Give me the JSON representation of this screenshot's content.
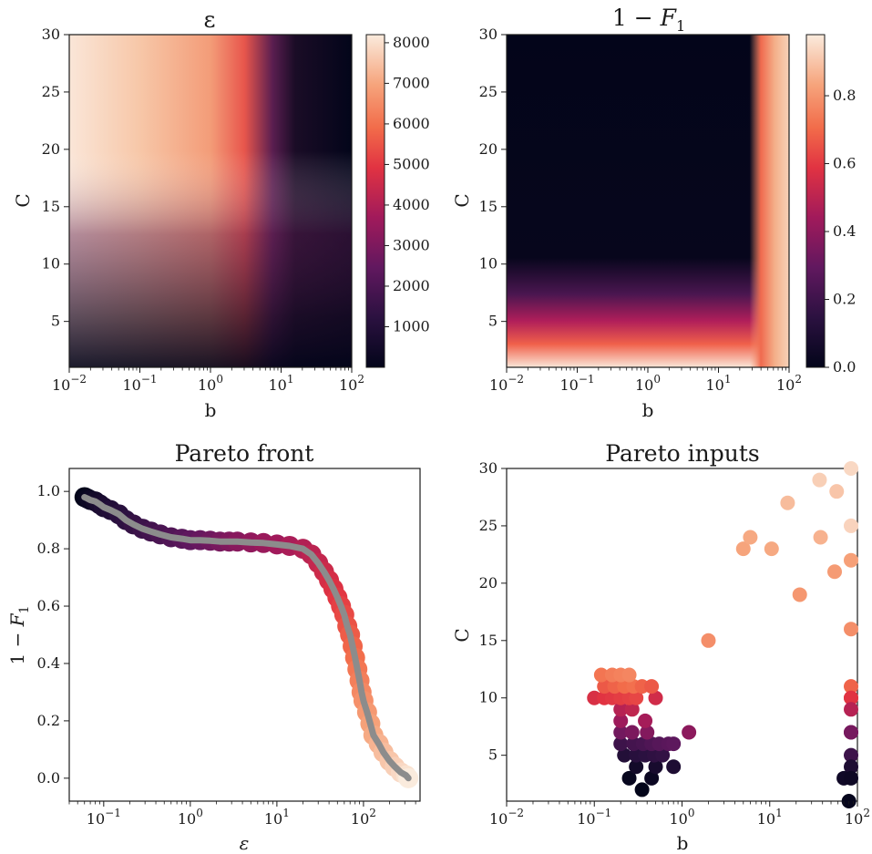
{
  "chart_data": [
    {
      "type": "heatmap",
      "title": "ε",
      "xlabel": "b",
      "ylabel": "C",
      "x_scale": "log",
      "xlim": [
        0.01,
        100
      ],
      "ylim": [
        1,
        30
      ],
      "xticks": [
        {
          "v": 0.01,
          "base": "10",
          "exp": "−2"
        },
        {
          "v": 0.1,
          "base": "10",
          "exp": "−1"
        },
        {
          "v": 1,
          "base": "10",
          "exp": "0"
        },
        {
          "v": 10,
          "base": "10",
          "exp": "1"
        },
        {
          "v": 100,
          "base": "10",
          "exp": "2"
        }
      ],
      "yticks": [
        "5",
        "10",
        "15",
        "20",
        "25",
        "30"
      ],
      "colorbar": {
        "min": 0,
        "max": 8200,
        "ticks": [
          "1000",
          "2000",
          "3000",
          "4000",
          "5000",
          "6000",
          "7000",
          "8000"
        ]
      },
      "colormap": "rocket"
    },
    {
      "type": "heatmap",
      "title": "1 − F₁",
      "xlabel": "b",
      "ylabel": "C",
      "x_scale": "log",
      "xlim": [
        0.01,
        100
      ],
      "ylim": [
        1,
        30
      ],
      "xticks": [
        {
          "v": 0.01,
          "base": "10",
          "exp": "−2"
        },
        {
          "v": 0.1,
          "base": "10",
          "exp": "−1"
        },
        {
          "v": 1,
          "base": "10",
          "exp": "0"
        },
        {
          "v": 10,
          "base": "10",
          "exp": "1"
        },
        {
          "v": 100,
          "base": "10",
          "exp": "2"
        }
      ],
      "yticks": [
        "5",
        "10",
        "15",
        "20",
        "25",
        "30"
      ],
      "colorbar": {
        "min": 0,
        "max": 0.98,
        "ticks": [
          "0.0",
          "0.2",
          "0.4",
          "0.6",
          "0.8"
        ]
      },
      "colormap": "rocket"
    },
    {
      "type": "scatter",
      "title": "Pareto front",
      "xlabel": "ε",
      "ylabel": "1 − F₁",
      "x_scale": "log",
      "xlim": [
        0.04,
        450
      ],
      "ylim": [
        -0.08,
        1.08
      ],
      "xticks": [
        {
          "v": 0.1,
          "base": "10",
          "exp": "−1"
        },
        {
          "v": 1,
          "base": "10",
          "exp": "0"
        },
        {
          "v": 10,
          "base": "10",
          "exp": "1"
        },
        {
          "v": 100,
          "base": "10",
          "exp": "2"
        }
      ],
      "yticks": [
        "0.0",
        "0.2",
        "0.4",
        "0.6",
        "0.8",
        "1.0"
      ],
      "line_color": "#8c8c8c",
      "x": [
        0.06,
        0.065,
        0.07,
        0.08,
        0.09,
        0.1,
        0.12,
        0.15,
        0.18,
        0.22,
        0.28,
        0.35,
        0.45,
        0.6,
        0.8,
        1.0,
        1.3,
        1.7,
        2.2,
        2.8,
        3.5,
        5,
        7,
        10,
        14,
        20,
        25,
        30,
        35,
        40,
        45,
        50,
        55,
        60,
        65,
        70,
        75,
        80,
        85,
        90,
        95,
        100,
        110,
        120,
        130,
        150,
        170,
        200,
        230,
        270,
        310,
        330
      ],
      "y": [
        0.98,
        0.975,
        0.97,
        0.965,
        0.955,
        0.945,
        0.935,
        0.92,
        0.9,
        0.885,
        0.87,
        0.86,
        0.85,
        0.84,
        0.835,
        0.83,
        0.83,
        0.828,
        0.825,
        0.825,
        0.825,
        0.822,
        0.82,
        0.815,
        0.81,
        0.8,
        0.78,
        0.75,
        0.72,
        0.69,
        0.66,
        0.63,
        0.6,
        0.57,
        0.53,
        0.5,
        0.46,
        0.42,
        0.38,
        0.34,
        0.3,
        0.27,
        0.23,
        0.19,
        0.15,
        0.12,
        0.09,
        0.06,
        0.04,
        0.02,
        0.01,
        0.0
      ]
    },
    {
      "type": "scatter",
      "title": "Pareto inputs",
      "xlabel": "b",
      "ylabel": "C",
      "x_scale": "log",
      "xlim": [
        0.01,
        100
      ],
      "ylim": [
        1,
        30
      ],
      "xticks": [
        {
          "v": 0.01,
          "base": "10",
          "exp": "−2"
        },
        {
          "v": 0.1,
          "base": "10",
          "exp": "−1"
        },
        {
          "v": 1,
          "base": "10",
          "exp": "0"
        },
        {
          "v": 10,
          "base": "10",
          "exp": "1"
        },
        {
          "v": 100,
          "base": "10",
          "exp": "2"
        }
      ],
      "yticks": [
        "5",
        "10",
        "15",
        "20",
        "25",
        "30"
      ],
      "points": [
        {
          "b": 0.35,
          "C": 2,
          "t": 0.0
        },
        {
          "b": 0.25,
          "C": 3,
          "t": 0.02
        },
        {
          "b": 0.45,
          "C": 3,
          "t": 0.03
        },
        {
          "b": 0.3,
          "C": 4,
          "t": 0.06
        },
        {
          "b": 0.5,
          "C": 4,
          "t": 0.08
        },
        {
          "b": 0.8,
          "C": 4,
          "t": 0.1
        },
        {
          "b": 0.22,
          "C": 5,
          "t": 0.12
        },
        {
          "b": 0.3,
          "C": 5,
          "t": 0.14
        },
        {
          "b": 0.38,
          "C": 5,
          "t": 0.15
        },
        {
          "b": 0.48,
          "C": 5,
          "t": 0.16
        },
        {
          "b": 0.6,
          "C": 5,
          "t": 0.17
        },
        {
          "b": 0.2,
          "C": 6,
          "t": 0.2
        },
        {
          "b": 0.28,
          "C": 6,
          "t": 0.22
        },
        {
          "b": 0.36,
          "C": 6,
          "t": 0.23
        },
        {
          "b": 0.45,
          "C": 6,
          "t": 0.25
        },
        {
          "b": 0.55,
          "C": 6,
          "t": 0.27
        },
        {
          "b": 0.7,
          "C": 6,
          "t": 0.28
        },
        {
          "b": 0.8,
          "C": 6,
          "t": 0.29
        },
        {
          "b": 0.2,
          "C": 7,
          "t": 0.34
        },
        {
          "b": 0.27,
          "C": 7,
          "t": 0.36
        },
        {
          "b": 0.4,
          "C": 7,
          "t": 0.38
        },
        {
          "b": 1.2,
          "C": 7,
          "t": 0.4
        },
        {
          "b": 0.2,
          "C": 8,
          "t": 0.44
        },
        {
          "b": 0.38,
          "C": 8,
          "t": 0.46
        },
        {
          "b": 0.2,
          "C": 9,
          "t": 0.5
        },
        {
          "b": 0.27,
          "C": 9,
          "t": 0.52
        },
        {
          "b": 0.1,
          "C": 10,
          "t": 0.58
        },
        {
          "b": 0.13,
          "C": 10,
          "t": 0.6
        },
        {
          "b": 0.16,
          "C": 10,
          "t": 0.61
        },
        {
          "b": 0.2,
          "C": 10,
          "t": 0.62
        },
        {
          "b": 0.25,
          "C": 10,
          "t": 0.63
        },
        {
          "b": 0.3,
          "C": 10,
          "t": 0.64
        },
        {
          "b": 0.5,
          "C": 10,
          "t": 0.56
        },
        {
          "b": 0.13,
          "C": 11,
          "t": 0.68
        },
        {
          "b": 0.17,
          "C": 11,
          "t": 0.7
        },
        {
          "b": 0.22,
          "C": 11,
          "t": 0.72
        },
        {
          "b": 0.28,
          "C": 11,
          "t": 0.73
        },
        {
          "b": 0.35,
          "C": 11,
          "t": 0.7
        },
        {
          "b": 0.45,
          "C": 11,
          "t": 0.68
        },
        {
          "b": 0.12,
          "C": 12,
          "t": 0.74
        },
        {
          "b": 0.16,
          "C": 12,
          "t": 0.76
        },
        {
          "b": 0.2,
          "C": 12,
          "t": 0.77
        },
        {
          "b": 0.25,
          "C": 12,
          "t": 0.78
        },
        {
          "b": 2.0,
          "C": 15,
          "t": 0.8
        },
        {
          "b": 22,
          "C": 19,
          "t": 0.82
        },
        {
          "b": 55,
          "C": 21,
          "t": 0.83
        },
        {
          "b": 5,
          "C": 23,
          "t": 0.85
        },
        {
          "b": 6,
          "C": 24,
          "t": 0.86
        },
        {
          "b": 10.5,
          "C": 23,
          "t": 0.86
        },
        {
          "b": 38,
          "C": 24,
          "t": 0.88
        },
        {
          "b": 16,
          "C": 27,
          "t": 0.9
        },
        {
          "b": 58,
          "C": 28,
          "t": 0.92
        },
        {
          "b": 37,
          "C": 29,
          "t": 0.94
        },
        {
          "b": 98,
          "C": 30,
          "t": 0.96
        },
        {
          "b": 98,
          "C": 25,
          "t": 0.95
        },
        {
          "b": 98,
          "C": 22,
          "t": 0.84
        },
        {
          "b": 98,
          "C": 16,
          "t": 0.8
        },
        {
          "b": 95,
          "C": 11,
          "t": 0.7
        },
        {
          "b": 85,
          "C": 10,
          "t": 0.66
        },
        {
          "b": 98,
          "C": 10,
          "t": 0.6
        },
        {
          "b": 98,
          "C": 9,
          "t": 0.5
        },
        {
          "b": 88,
          "C": 7,
          "t": 0.4
        },
        {
          "b": 98,
          "C": 7,
          "t": 0.35
        },
        {
          "b": 98,
          "C": 5,
          "t": 0.2
        },
        {
          "b": 98,
          "C": 4,
          "t": 0.1
        },
        {
          "b": 70,
          "C": 3,
          "t": 0.05
        },
        {
          "b": 90,
          "C": 3,
          "t": 0.04
        },
        {
          "b": 80,
          "C": 1,
          "t": 0.01
        }
      ]
    }
  ]
}
